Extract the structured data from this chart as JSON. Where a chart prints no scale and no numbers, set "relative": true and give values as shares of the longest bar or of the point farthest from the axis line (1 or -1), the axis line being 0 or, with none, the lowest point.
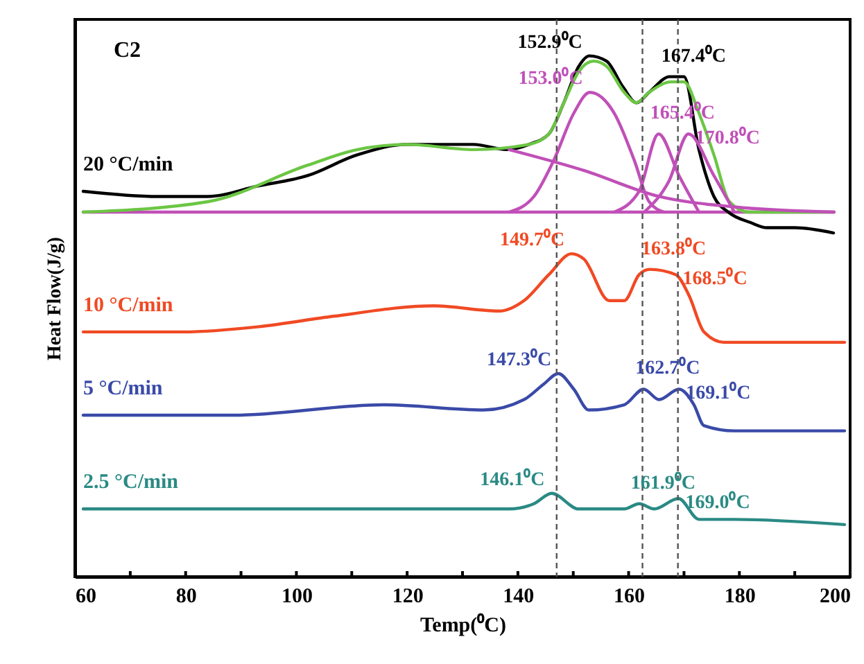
{
  "chart_data": {
    "type": "line",
    "relative": true,
    "xlabel": "Temp(⁰C)",
    "ylabel": "Heat Flow(J/g)",
    "xlim": [
      60,
      200
    ],
    "xticks": [
      60,
      {
        "value": 70,
        "label": null
      },
      80,
      {
        "value": 90,
        "label": null
      },
      100,
      {
        "value": 110,
        "label": null
      },
      120,
      {
        "value": 130,
        "label": null
      },
      140,
      {
        "value": 150,
        "label": null
      },
      160,
      {
        "value": 170,
        "label": null
      },
      180,
      {
        "value": 190,
        "label": null
      },
      200
    ],
    "series": [
      {
        "color": "#c050b8",
        "x": [
          61.5,
          197.1
        ],
        "values": [
          0.7,
          0.7
        ]
      },
      {
        "name": "20 °C/min",
        "color": "#000000",
        "x": [
          61.5,
          75,
          84,
          93,
          102,
          111,
          120,
          125,
          132,
          138,
          142,
          145.6,
          148.3,
          151,
          152.9,
          156,
          159,
          161.4,
          163.7,
          167.4,
          170,
          172.7,
          175.4,
          178,
          182,
          185,
          190,
          197
        ],
        "values": [
          0.74,
          0.73,
          0.73,
          0.75,
          0.77,
          0.81,
          0.83,
          0.83,
          0.83,
          0.82,
          0.83,
          0.85,
          0.91,
          0.98,
          1.0,
          0.99,
          0.94,
          0.91,
          0.93,
          0.96,
          0.96,
          0.82,
          0.73,
          0.7,
          0.68,
          0.67,
          0.67,
          0.66
        ]
      },
      {
        "color": "#6cc644",
        "x": [
          61.5,
          84,
          102,
          111,
          120,
          132,
          142,
          145.6,
          148.3,
          151,
          153.7,
          156,
          159.2,
          161.4,
          163.7,
          167.7,
          170,
          172.7,
          175.4,
          178.2,
          181.8,
          197.1
        ],
        "values": [
          0.7,
          0.72,
          0.79,
          0.82,
          0.83,
          0.82,
          0.83,
          0.85,
          0.91,
          0.97,
          0.99,
          0.98,
          0.93,
          0.91,
          0.93,
          0.95,
          0.95,
          0.89,
          0.81,
          0.72,
          0.7,
          0.7
        ]
      },
      {
        "color": "#c050b8",
        "x": [
          138.4,
          151.9,
          165.5,
          179.1,
          197.1
        ],
        "values": [
          0.82,
          0.78,
          0.73,
          0.71,
          0.7
        ]
      },
      {
        "color": "#c050b8",
        "x": [
          138.4,
          142.9,
          146.5,
          150.1,
          153.0,
          157.4,
          161,
          163.7,
          166.4
        ],
        "values": [
          0.7,
          0.73,
          0.8,
          0.89,
          0.93,
          0.89,
          0.8,
          0.72,
          0.7
        ]
      },
      {
        "color": "#c050b8",
        "x": [
          157.4,
          161.9,
          165.4,
          169.1,
          172.7
        ],
        "values": [
          0.7,
          0.74,
          0.85,
          0.77,
          0.7
        ]
      },
      {
        "color": "#c050b8",
        "x": [
          162.8,
          167.3,
          170.8,
          175.4,
          179.1
        ],
        "values": [
          0.7,
          0.76,
          0.85,
          0.77,
          0.7
        ]
      },
      {
        "name": "10 °C/min",
        "color": "#f04a24",
        "x": [
          61.5,
          79.6,
          93.2,
          106.7,
          124.8,
          136.6,
          141.1,
          145.6,
          149.7,
          151.9,
          156.5,
          159.2,
          161.9,
          163.8,
          168.5,
          170.9,
          173.6,
          177.2,
          188.1,
          199
        ],
        "values": [
          0.47,
          0.47,
          0.48,
          0.5,
          0.52,
          0.51,
          0.53,
          0.58,
          0.62,
          0.61,
          0.53,
          0.53,
          0.58,
          0.59,
          0.58,
          0.54,
          0.47,
          0.45,
          0.45,
          0.45
        ]
      },
      {
        "name": "5 °C/min",
        "color": "#3a4aa8",
        "x": [
          61.5,
          88.6,
          115.8,
          133.8,
          141.1,
          144.7,
          147.3,
          150.1,
          152.8,
          159.2,
          162.7,
          165.5,
          169.1,
          171.8,
          173.6,
          179.1,
          199
        ],
        "values": [
          0.31,
          0.31,
          0.33,
          0.32,
          0.34,
          0.37,
          0.39,
          0.36,
          0.32,
          0.33,
          0.36,
          0.34,
          0.36,
          0.33,
          0.29,
          0.28,
          0.28
        ]
      },
      {
        "name": "2.5 °C/min",
        "color": "#2a8a84",
        "x": [
          61.5,
          88.6,
          115.8,
          138.4,
          142.9,
          146.1,
          151,
          159.2,
          161.9,
          164.6,
          169.0,
          172.7,
          179.1,
          199
        ],
        "values": [
          0.13,
          0.13,
          0.13,
          0.13,
          0.14,
          0.16,
          0.13,
          0.13,
          0.14,
          0.13,
          0.15,
          0.11,
          0.11,
          0.1
        ]
      }
    ],
    "ref_lines": [
      {
        "axis": "x",
        "value": 147,
        "color": "#555555",
        "line_style": "dashed"
      },
      {
        "axis": "x",
        "value": 162.5,
        "color": "#555555",
        "line_style": "dashed"
      },
      {
        "axis": "x",
        "value": 168.9,
        "color": "#555555",
        "line_style": "dashed"
      }
    ],
    "annotations": [
      "C2",
      {
        "text": "152.9⁰C",
        "x": 152.9,
        "y": 1.0
      },
      {
        "text": "167.4⁰C",
        "x": 167.4,
        "y": 0.96
      },
      {
        "text": "153.0⁰C",
        "x": 153.0,
        "y": 0.93
      },
      {
        "text": "165.4⁰C",
        "x": 165.4,
        "y": 0.85
      },
      {
        "text": "170.8⁰C",
        "x": 170.8,
        "y": 0.85
      },
      {
        "text": "149.7⁰C",
        "x": 149.7,
        "y": 0.62
      },
      {
        "text": "163.8⁰C",
        "x": 163.8,
        "y": 0.59
      },
      {
        "text": "168.5⁰C",
        "x": 168.5,
        "y": 0.58
      },
      {
        "text": "147.3⁰C",
        "x": 147.3,
        "y": 0.39
      },
      {
        "text": "162.7⁰C",
        "x": 162.7,
        "y": 0.36
      },
      {
        "text": "169.1⁰C",
        "x": 169.1,
        "y": 0.36
      },
      {
        "text": "146.1⁰C",
        "x": 146.1,
        "y": 0.16
      },
      {
        "text": "161.9⁰C",
        "x": 161.9,
        "y": 0.14
      },
      {
        "text": "169.0⁰C",
        "x": 169.0,
        "y": 0.15
      }
    ]
  }
}
